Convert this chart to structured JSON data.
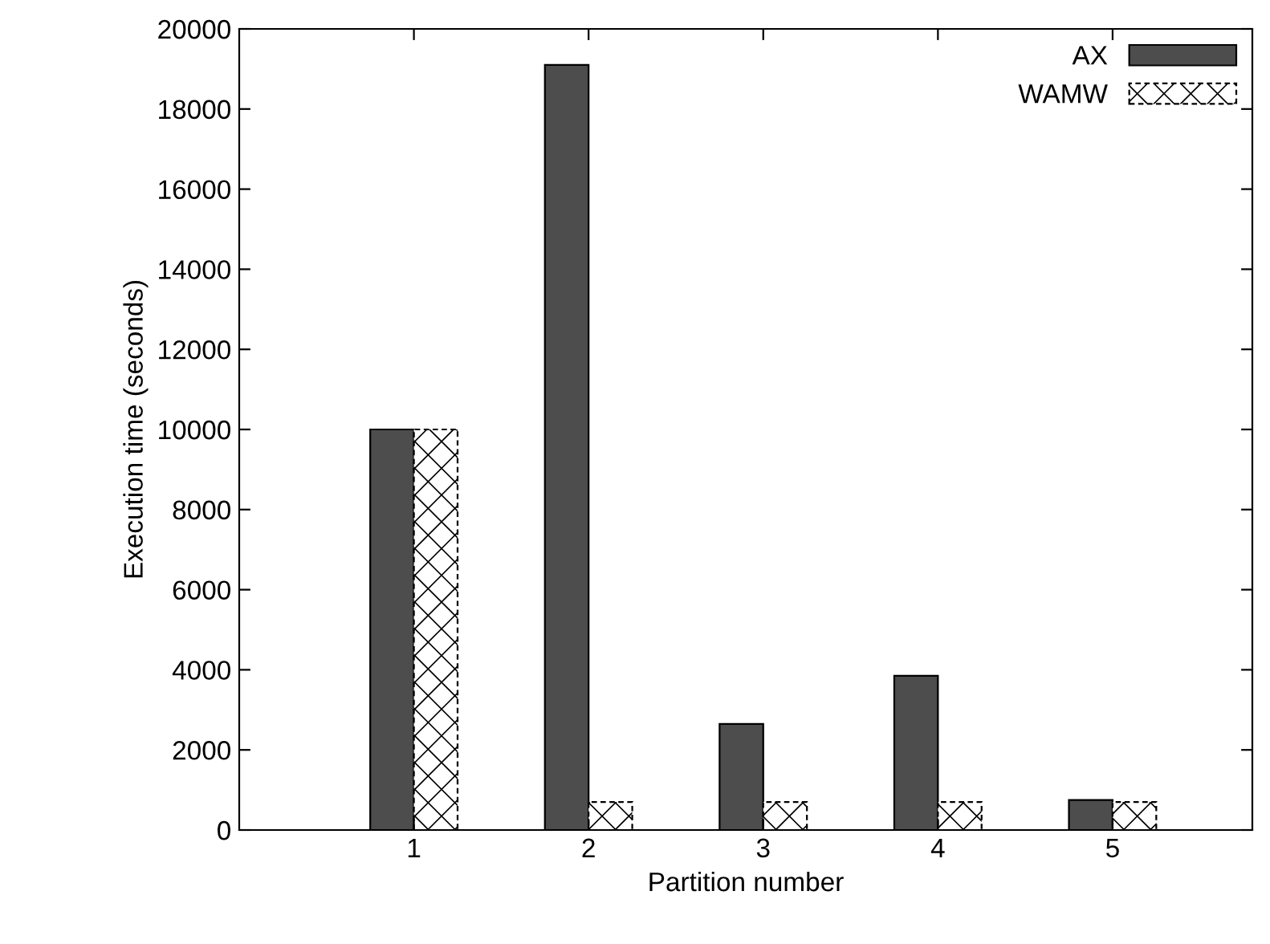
{
  "chart_data": {
    "type": "bar",
    "xlabel": "Partition number",
    "ylabel": "Execution time (seconds)",
    "x": [
      1,
      2,
      3,
      4,
      5
    ],
    "xlim": [
      0,
      5.8
    ],
    "xticks": [
      1,
      2,
      3,
      4,
      5
    ],
    "ylim": [
      0,
      20000
    ],
    "yticks": [
      0,
      2000,
      4000,
      6000,
      8000,
      10000,
      12000,
      14000,
      16000,
      18000,
      20000
    ],
    "series": [
      {
        "name": "AX",
        "color": "#4d4d4d",
        "values": [
          10000,
          19100,
          2650,
          3850,
          750
        ]
      },
      {
        "name": "WAMW",
        "color": "#ffffff",
        "values": [
          10000,
          700,
          700,
          700,
          700
        ]
      }
    ],
    "legend": "top right",
    "grid": false
  }
}
